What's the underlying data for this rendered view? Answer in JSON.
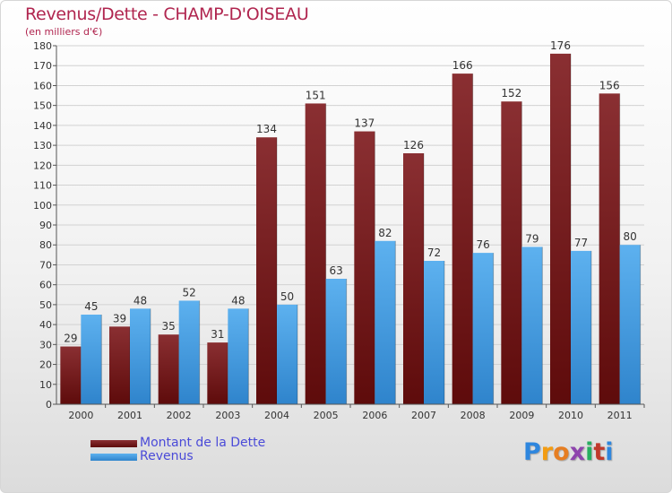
{
  "title": "Revenus/Dette - CHAMP-D'OISEAU",
  "subtitle": "(en milliers d'€)",
  "chart_data": {
    "type": "bar",
    "categories": [
      "2000",
      "2001",
      "2002",
      "2003",
      "2004",
      "2005",
      "2006",
      "2007",
      "2008",
      "2009",
      "2010",
      "2011"
    ],
    "series": [
      {
        "name": "Montant de la Dette",
        "values": [
          29,
          39,
          35,
          31,
          134,
          151,
          137,
          126,
          166,
          152,
          176,
          156
        ],
        "color": "#7a1a1a"
      },
      {
        "name": "Revenus",
        "values": [
          45,
          48,
          52,
          48,
          50,
          63,
          82,
          72,
          76,
          79,
          77,
          80
        ],
        "color": "#4ea3e3"
      }
    ],
    "yticks": [
      "0",
      "10",
      "20",
      "30",
      "40",
      "50",
      "60",
      "70",
      "80",
      "90",
      "100",
      "110",
      "120",
      "130",
      "140",
      "150",
      "160",
      "170",
      "180"
    ],
    "ylim": [
      0,
      180
    ],
    "grid": true,
    "legend_position": "bottom-left"
  },
  "brand": {
    "logo": "Proxiti"
  }
}
